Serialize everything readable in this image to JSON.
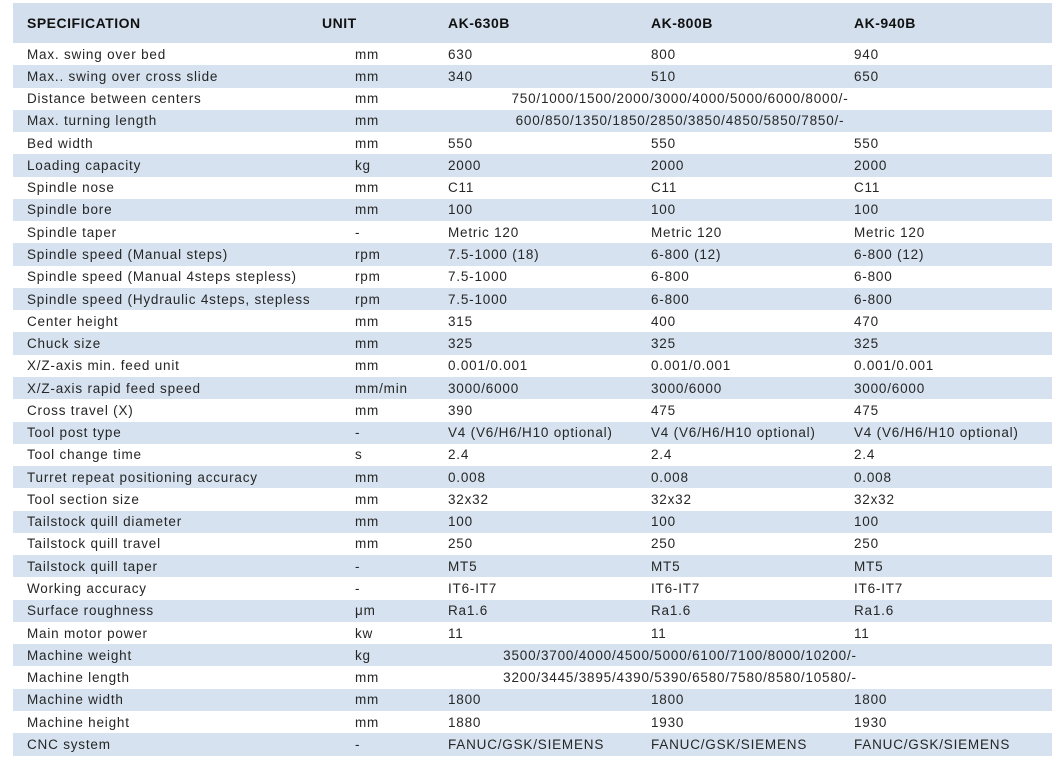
{
  "colors": {
    "stripe_blue": "#d6e2ef",
    "header_blue": "#d3dfec",
    "text": "#262626",
    "background": "#ffffff"
  },
  "table": {
    "columns": [
      "SPECIFICATION",
      "UNIT",
      "AK-630B",
      "AK-800B",
      "AK-940B"
    ],
    "rows": [
      {
        "spec": "Max. swing over bed",
        "unit": "mm",
        "values": [
          "630",
          "800",
          "940"
        ]
      },
      {
        "spec": "Max.. swing over cross slide",
        "unit": "mm",
        "values": [
          "340",
          "510",
          "650"
        ]
      },
      {
        "spec": "Distance between centers",
        "unit": "mm",
        "merged": "750/1000/1500/2000/3000/4000/5000/6000/8000/-"
      },
      {
        "spec": "Max. turning length",
        "unit": "mm",
        "merged": "600/850/1350/1850/2850/3850/4850/5850/7850/-"
      },
      {
        "spec": "Bed width",
        "unit": "mm",
        "values": [
          "550",
          "550",
          "550"
        ]
      },
      {
        "spec": "Loading capacity",
        "unit": "kg",
        "values": [
          "2000",
          "2000",
          "2000"
        ]
      },
      {
        "spec": "Spindle nose",
        "unit": "mm",
        "values": [
          "C11",
          "C11",
          "C11"
        ]
      },
      {
        "spec": "Spindle bore",
        "unit": "mm",
        "values": [
          "100",
          "100",
          "100"
        ]
      },
      {
        "spec": "Spindle taper",
        "unit": "-",
        "values": [
          "Metric 120",
          "Metric 120",
          "Metric 120"
        ]
      },
      {
        "spec": "Spindle speed (Manual steps)",
        "unit": "rpm",
        "values": [
          "7.5-1000 (18)",
          "6-800 (12)",
          "6-800 (12)"
        ]
      },
      {
        "spec": "Spindle speed (Manual 4steps stepless)",
        "unit": "rpm",
        "values": [
          "7.5-1000",
          "6-800",
          "6-800"
        ]
      },
      {
        "spec": "Spindle speed (Hydraulic 4steps, stepless)",
        "unit": "rpm",
        "values": [
          "7.5-1000",
          "6-800",
          "6-800"
        ]
      },
      {
        "spec": "Center height",
        "unit": "mm",
        "values": [
          "315",
          "400",
          "470"
        ]
      },
      {
        "spec": "Chuck size",
        "unit": "mm",
        "values": [
          "325",
          "325",
          "325"
        ]
      },
      {
        "spec": "X/Z-axis min. feed unit",
        "unit": "mm",
        "values": [
          "0.001/0.001",
          "0.001/0.001",
          "0.001/0.001"
        ]
      },
      {
        "spec": "X/Z-axis rapid feed speed",
        "unit": "mm/min",
        "values": [
          "3000/6000",
          "3000/6000",
          "3000/6000"
        ]
      },
      {
        "spec": "Cross travel (X)",
        "unit": "mm",
        "values": [
          "390",
          "475",
          "475"
        ]
      },
      {
        "spec": "Tool post type",
        "unit": "-",
        "values": [
          "V4 (V6/H6/H10 optional)",
          "V4 (V6/H6/H10 optional)",
          "V4 (V6/H6/H10 optional)"
        ]
      },
      {
        "spec": "Tool change time",
        "unit": "s",
        "values": [
          "2.4",
          "2.4",
          "2.4"
        ]
      },
      {
        "spec": "Turret repeat positioning accuracy",
        "unit": "mm",
        "values": [
          "0.008",
          "0.008",
          "0.008"
        ]
      },
      {
        "spec": "Tool section size",
        "unit": "mm",
        "values": [
          "32x32",
          "32x32",
          "32x32"
        ]
      },
      {
        "spec": "Tailstock quill diameter",
        "unit": "mm",
        "values": [
          "100",
          "100",
          "100"
        ]
      },
      {
        "spec": "Tailstock quill travel",
        "unit": "mm",
        "values": [
          "250",
          "250",
          "250"
        ]
      },
      {
        "spec": "Tailstock quill taper",
        "unit": "-",
        "values": [
          "MT5",
          "MT5",
          "MT5"
        ]
      },
      {
        "spec": "Working accuracy",
        "unit": "-",
        "values": [
          "IT6-IT7",
          "IT6-IT7",
          "IT6-IT7"
        ]
      },
      {
        "spec": "Surface roughness",
        "unit": "μm",
        "values": [
          "Ra1.6",
          "Ra1.6",
          "Ra1.6"
        ]
      },
      {
        "spec": "Main motor power",
        "unit": "kw",
        "values": [
          "11",
          "11",
          "11"
        ]
      },
      {
        "spec": "Machine weight",
        "unit": "kg",
        "merged": "3500/3700/4000/4500/5000/6100/7100/8000/10200/-"
      },
      {
        "spec": "Machine length",
        "unit": "mm",
        "merged": "3200/3445/3895/4390/5390/6580/7580/8580/10580/-"
      },
      {
        "spec": "Machine width",
        "unit": "mm",
        "values": [
          "1800",
          "1800",
          "1800"
        ]
      },
      {
        "spec": "Machine height",
        "unit": "mm",
        "values": [
          "1880",
          "1930",
          "1930"
        ]
      },
      {
        "spec": "CNC system",
        "unit": "-",
        "values": [
          "FANUC/GSK/SIEMENS",
          "FANUC/GSK/SIEMENS",
          "FANUC/GSK/SIEMENS"
        ]
      }
    ]
  }
}
